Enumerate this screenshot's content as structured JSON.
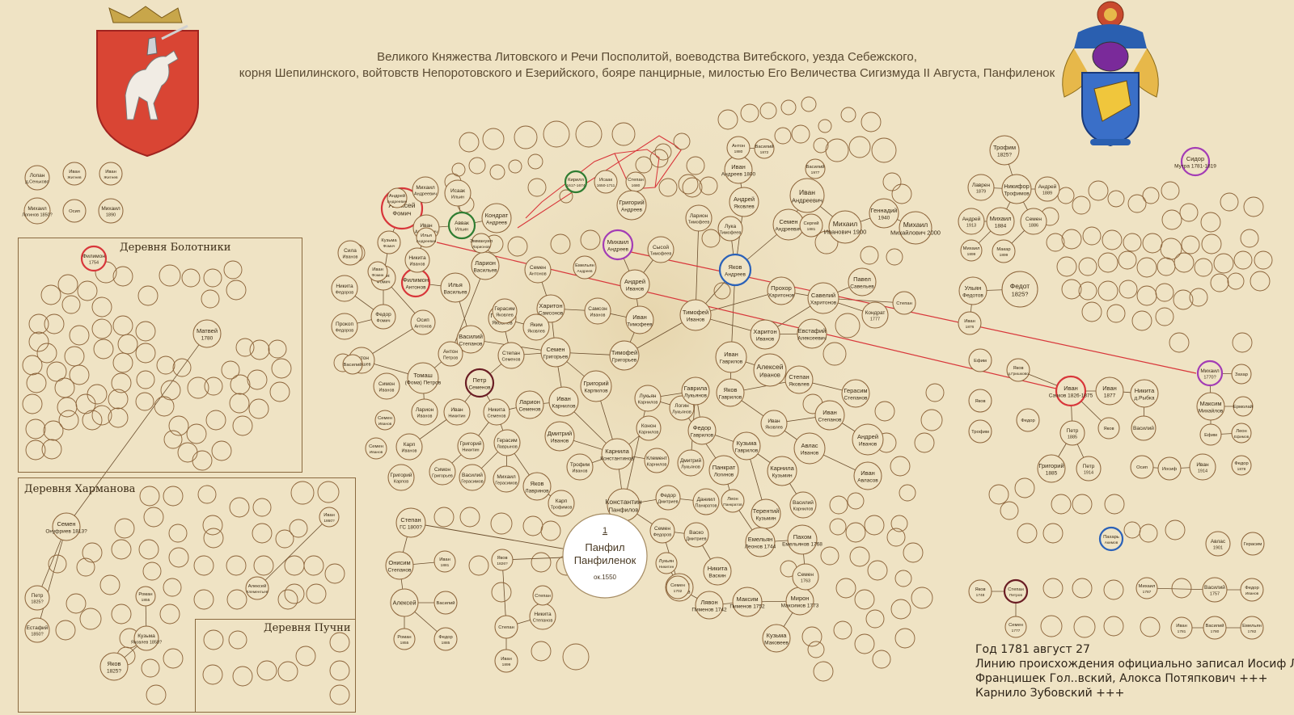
{
  "header": {
    "line1": "Великого Княжества Литовского и Речи Посполитой, воеводства Витебского, уезда Себежского,",
    "line2": "корня Шепилинского, войтовств Непоротовского и Езерийского, бояре панцирные, милостью Его Величества Сигизмуда II Августа, Панфиленок"
  },
  "regions": {
    "bolotniki": "Деревня Болотники",
    "kharmanova": "Деревня Харманова",
    "puchni": "Деревня Пучни"
  },
  "root": {
    "num": "1",
    "name1": "Панфил",
    "name2": "Панфиленок",
    "year": "ок.1550"
  },
  "people": [
    {
      "id": "p1",
      "name": "Лопан",
      "sub": "д.Сеньково"
    },
    {
      "id": "p2",
      "name": "Иван",
      "sub": "Житнев"
    },
    {
      "id": "p3",
      "name": "Иван",
      "sub": "Житнев"
    },
    {
      "id": "p4",
      "name": "Михаил",
      "sub": "Логинов 1850?"
    },
    {
      "id": "p5",
      "name": "Осип",
      "sub": ""
    },
    {
      "id": "p6",
      "name": "Михаил",
      "sub": "1890"
    },
    {
      "id": "b1",
      "name": "Филимон",
      "sub": "1754"
    },
    {
      "id": "b2",
      "name": "Матвей",
      "sub": "1780"
    },
    {
      "id": "h1",
      "name": "Семен",
      "sub": "Онуфриев 1813?"
    },
    {
      "id": "h2",
      "name": "Петр",
      "sub": "1825?"
    },
    {
      "id": "h3",
      "name": "Естафий",
      "sub": "1850?"
    },
    {
      "id": "h4",
      "name": "Кузьма",
      "sub": "Яковлев 1858?"
    },
    {
      "id": "h5",
      "name": "Яков",
      "sub": "1825?"
    },
    {
      "id": "h6",
      "name": "Роман",
      "sub": "1855"
    },
    {
      "id": "h7",
      "name": "Алексей",
      "sub": "Клементьев"
    },
    {
      "id": "h8",
      "name": "Иван",
      "sub": "1860?"
    },
    {
      "id": "m1",
      "name": "Алексей",
      "sub": "Фомич"
    },
    {
      "id": "m2",
      "name": "Кузьма",
      "sub": "Фомич"
    },
    {
      "id": "m3",
      "name": "Иван",
      "sub": "Фомич"
    },
    {
      "id": "m4",
      "name": "Филимон",
      "sub": "Антонов"
    },
    {
      "id": "m5",
      "name": "Илья",
      "sub": "Васильев"
    },
    {
      "id": "m6",
      "name": "Никита",
      "sub": "Федоров"
    },
    {
      "id": "m7",
      "name": "Прокоп",
      "sub": "Федоров"
    },
    {
      "id": "m8",
      "name": "Федор",
      "sub": "Фомич"
    },
    {
      "id": "m9",
      "name": "Осип",
      "sub": "Антонов"
    },
    {
      "id": "m10",
      "name": "Антон",
      "sub": "Томашев"
    },
    {
      "id": "m11",
      "name": "Томаш",
      "sub": "(Фома) Петров"
    },
    {
      "id": "m12",
      "name": "Петр",
      "sub": "Семенов"
    },
    {
      "id": "m13",
      "name": "Симон",
      "sub": "Иванов"
    },
    {
      "id": "m14",
      "name": "Ларион",
      "sub": "Иванов"
    },
    {
      "id": "m15",
      "name": "Иван",
      "sub": "Никитин"
    },
    {
      "id": "m16",
      "name": "Никита",
      "sub": "Семенов"
    },
    {
      "id": "m17",
      "name": "Карп",
      "sub": "Иванов"
    },
    {
      "id": "m18",
      "name": "Григорий",
      "sub": "Никитин"
    },
    {
      "id": "m19",
      "name": "Симон",
      "sub": "Григорьев"
    },
    {
      "id": "m20",
      "name": "Герасим",
      "sub": "Лаврынов"
    },
    {
      "id": "m21",
      "name": "Василий",
      "sub": "Герасимов"
    },
    {
      "id": "m22",
      "name": "Михаил",
      "sub": "Герасимов"
    },
    {
      "id": "m23",
      "name": "Яков",
      "sub": "Лавринов"
    },
    {
      "id": "m24",
      "name": "Карп",
      "sub": "Трофимов"
    },
    {
      "id": "m25",
      "name": "Степан",
      "sub": "ГС 1800?"
    },
    {
      "id": "m26",
      "name": "Онисим",
      "sub": "Степанов"
    },
    {
      "id": "m27",
      "name": "Иван",
      "sub": "1881"
    },
    {
      "id": "m28",
      "name": "Алексей",
      "sub": ""
    },
    {
      "id": "m29",
      "name": "Василий",
      "sub": ""
    },
    {
      "id": "m30",
      "name": "Роман",
      "sub": "1855"
    },
    {
      "id": "m31",
      "name": "Федор",
      "sub": "1885"
    },
    {
      "id": "m32",
      "name": "Яков",
      "sub": "1826?"
    },
    {
      "id": "m33",
      "name": "Степан",
      "sub": ""
    },
    {
      "id": "m34",
      "name": "Никита",
      "sub": "Степанов"
    },
    {
      "id": "m35",
      "name": "Степан",
      "sub": ""
    },
    {
      "id": "m36",
      "name": "Иван",
      "sub": "1899"
    },
    {
      "id": "c1",
      "name": "Семен",
      "sub": "Григорьев"
    },
    {
      "id": "c2",
      "name": "Харитон",
      "sub": "Самсонов"
    },
    {
      "id": "c3",
      "name": "Самсон",
      "sub": "Иванов"
    },
    {
      "id": "c4",
      "name": "Иван",
      "sub": "Тимофеев"
    },
    {
      "id": "c5",
      "name": "Тимофей",
      "sub": "Иванов"
    },
    {
      "id": "c6",
      "name": "Андрей",
      "sub": "Иванов"
    },
    {
      "id": "c7",
      "name": "Михаил",
      "sub": "Андреев"
    },
    {
      "id": "c8",
      "name": "Сысой",
      "sub": "Тимофеев"
    },
    {
      "id": "c9",
      "name": "Герасим",
      "sub": "Яковлев"
    },
    {
      "id": "c10",
      "name": "Яким",
      "sub": "Яковлев"
    },
    {
      "id": "c11",
      "name": "Степан",
      "sub": "Семенов"
    },
    {
      "id": "c12",
      "name": "Василий",
      "sub": "Степанов"
    },
    {
      "id": "c13",
      "name": "Антон",
      "sub": "Петров"
    },
    {
      "id": "c14",
      "name": "Тимофей",
      "sub": "Григорьев"
    },
    {
      "id": "c15",
      "name": "Григорий",
      "sub": "Карпилов"
    },
    {
      "id": "c16",
      "name": "Иван",
      "sub": "Карнилов"
    },
    {
      "id": "c17",
      "name": "Ларион",
      "sub": "Семенов"
    },
    {
      "id": "c18",
      "name": "Дмитрий",
      "sub": "Иванов"
    },
    {
      "id": "c19",
      "name": "Трофим",
      "sub": "Иванов"
    },
    {
      "id": "c20",
      "name": "Карнила",
      "sub": "Константинов"
    },
    {
      "id": "c21",
      "name": "Константин",
      "sub": "Панфилов"
    },
    {
      "id": "c22",
      "name": "Лукьян",
      "sub": "Карнилов"
    },
    {
      "id": "c23",
      "name": "Логин",
      "sub": "Лукьянов"
    },
    {
      "id": "c24",
      "name": "Конон",
      "sub": "Карнилов"
    },
    {
      "id": "c25",
      "name": "Клемент",
      "sub": "Карнилов"
    },
    {
      "id": "c26",
      "name": "Гаврила",
      "sub": "Лукьянов"
    },
    {
      "id": "c27",
      "name": "Дмитрий",
      "sub": "Лукьянов"
    },
    {
      "id": "c28",
      "name": "Федор",
      "sub": "Гаврилов"
    },
    {
      "id": "c29",
      "name": "Панкрат",
      "sub": "Логинов"
    },
    {
      "id": "c30",
      "name": "Федор",
      "sub": "Дмитриев"
    },
    {
      "id": "c31",
      "name": "Даниил",
      "sub": "Панкратов"
    },
    {
      "id": "c32",
      "name": "Леон",
      "sub": "Панкратов"
    },
    {
      "id": "c33",
      "name": "Семен",
      "sub": "Федоров"
    },
    {
      "id": "c34",
      "name": "Васко",
      "sub": "Дмитриев"
    },
    {
      "id": "c35",
      "name": "Никита",
      "sub": "Васкин"
    },
    {
      "id": "c36",
      "name": "Лаврен",
      "sub": "Семенов"
    },
    {
      "id": "c37",
      "name": "Лукьян",
      "sub": "Никитин"
    },
    {
      "id": "c38",
      "name": "Семен",
      "sub": "1702"
    },
    {
      "id": "c39",
      "name": "Лявон",
      "sub": "Пименов 1742"
    },
    {
      "id": "c40",
      "name": "Максим",
      "sub": "Пименов 1752"
    },
    {
      "id": "c41",
      "name": "Мирон",
      "sub": "Максимов 1773"
    },
    {
      "id": "c42",
      "name": "Кузьма",
      "sub": "Маковеев"
    },
    {
      "id": "r1",
      "name": "Андрей",
      "sub": "Яковлев"
    },
    {
      "id": "r2",
      "name": "Лука",
      "sub": "Тимофеев"
    },
    {
      "id": "r3",
      "name": "Ларион",
      "sub": "Тимофеев"
    },
    {
      "id": "r4",
      "name": "Иван",
      "sub": "Андреев 1800"
    },
    {
      "id": "r5",
      "name": "Яков",
      "sub": "Андреев"
    },
    {
      "id": "r6",
      "name": "Семен",
      "sub": "Андреевич"
    },
    {
      "id": "r7",
      "name": "Иван",
      "sub": "Андреевич"
    },
    {
      "id": "r8",
      "name": "Прохор",
      "sub": "Харитонов"
    },
    {
      "id": "r9",
      "name": "Харитон",
      "sub": "Иванов"
    },
    {
      "id": "r10",
      "name": "Савелий",
      "sub": "Харитонов"
    },
    {
      "id": "r11",
      "name": "Евстафий",
      "sub": "Алексеевич"
    },
    {
      "id": "r12",
      "name": "Алексей",
      "sub": "Иванов"
    },
    {
      "id": "r13",
      "name": "Иван",
      "sub": "Гаврилов"
    },
    {
      "id": "r14",
      "name": "Степан",
      "sub": "Яковлев"
    },
    {
      "id": "r15",
      "name": "Герасим",
      "sub": "Степанов"
    },
    {
      "id": "r16",
      "name": "Иван",
      "sub": "Яковлев"
    },
    {
      "id": "r17",
      "name": "Иван",
      "sub": "Степанов"
    },
    {
      "id": "r18",
      "name": "Андрей",
      "sub": "Иванов"
    },
    {
      "id": "r19",
      "name": "Авлас",
      "sub": "Иванов"
    },
    {
      "id": "r20",
      "name": "Иван",
      "sub": "Авласов"
    },
    {
      "id": "r21",
      "name": "Карнила",
      "sub": "Кузьмин"
    },
    {
      "id": "r22",
      "name": "Кузьма",
      "sub": "Гаврилов"
    },
    {
      "id": "r23",
      "name": "Терентий",
      "sub": "Кузьмин"
    },
    {
      "id": "r24",
      "name": "Василий",
      "sub": "Карнилов"
    },
    {
      "id": "r25",
      "name": "Емельян",
      "sub": "Леонов 1744"
    },
    {
      "id": "r26",
      "name": "Пахом",
      "sub": "Емельянов 1768"
    },
    {
      "id": "r27",
      "name": "Семен",
      "sub": "1763"
    },
    {
      "id": "r28",
      "name": "Павел",
      "sub": "Савельев"
    },
    {
      "id": "r29",
      "name": "Кондрат",
      "sub": "1777"
    },
    {
      "id": "r30",
      "name": "Степан",
      "sub": ""
    },
    {
      "id": "r31",
      "name": "Яков",
      "sub": "Гаврилов"
    },
    {
      "id": "r32",
      "name": "Михаил",
      "sub": "Иванович 1900"
    },
    {
      "id": "r33",
      "name": "Сергей",
      "sub": "1881"
    },
    {
      "id": "r34",
      "name": "Василий",
      "sub": "1977"
    },
    {
      "id": "r35",
      "name": "Геннадий",
      "sub": "1940"
    },
    {
      "id": "r36",
      "name": "Михаил",
      "sub": "Михайлович 2000"
    },
    {
      "id": "r37",
      "name": "Антон",
      "sub": "1880"
    },
    {
      "id": "r38",
      "name": "Василий",
      "sub": "1872"
    },
    {
      "id": "e1",
      "name": "Трофим",
      "sub": "1825?"
    },
    {
      "id": "e2",
      "name": "Лаврен",
      "sub": "1879"
    },
    {
      "id": "e3",
      "name": "Никифор",
      "sub": "Трофимов"
    },
    {
      "id": "e4",
      "name": "Андрей",
      "sub": "1889"
    },
    {
      "id": "e5",
      "name": "Михаил",
      "sub": "1884"
    },
    {
      "id": "e6",
      "name": "Семен",
      "sub": "1886"
    },
    {
      "id": "e7",
      "name": "Андрей",
      "sub": "1913"
    },
    {
      "id": "e8",
      "name": "Михаил",
      "sub": "1899"
    },
    {
      "id": "e9",
      "name": "Макар",
      "sub": "1899"
    },
    {
      "id": "e10",
      "name": "Ульян",
      "sub": "Федотов"
    },
    {
      "id": "e11",
      "name": "Федот",
      "sub": "1825?"
    },
    {
      "id": "e12",
      "name": "Иван",
      "sub": "1876"
    },
    {
      "id": "e13",
      "name": "Ефим",
      "sub": ""
    },
    {
      "id": "e14",
      "name": "Яков",
      "sub": ""
    },
    {
      "id": "e15",
      "name": "Трофим",
      "sub": ""
    },
    {
      "id": "e16",
      "name": "Яков",
      "sub": "д.Гришково"
    },
    {
      "id": "e17",
      "name": "Федор",
      "sub": ""
    },
    {
      "id": "e18",
      "name": "Иван",
      "sub": "Сачков 1826-1875"
    },
    {
      "id": "e19",
      "name": "Иван",
      "sub": "1877"
    },
    {
      "id": "e20",
      "name": "Никита",
      "sub": "д.Рыбка"
    },
    {
      "id": "e21",
      "name": "Петр",
      "sub": "1885"
    },
    {
      "id": "e22",
      "name": "Яков",
      "sub": ""
    },
    {
      "id": "e23",
      "name": "Василий",
      "sub": ""
    },
    {
      "id": "e24",
      "name": "Григорий",
      "sub": "1885"
    },
    {
      "id": "e25",
      "name": "Петр",
      "sub": "1914"
    },
    {
      "id": "e26",
      "name": "Осип",
      "sub": ""
    },
    {
      "id": "e27",
      "name": "Иосиф",
      "sub": ""
    },
    {
      "id": "e28",
      "name": "Иван",
      "sub": "1914"
    },
    {
      "id": "e29",
      "name": "Сидор",
      "sub": "Мутра 1781-1819"
    },
    {
      "id": "e30",
      "name": "Михаил",
      "sub": "1770?"
    },
    {
      "id": "e31",
      "name": "Максим",
      "sub": "Михайлов"
    },
    {
      "id": "e32",
      "name": "Ефим",
      "sub": ""
    },
    {
      "id": "e33",
      "name": "Леон",
      "sub": "Ефимов"
    },
    {
      "id": "e34",
      "name": "Ермолай",
      "sub": ""
    },
    {
      "id": "e35",
      "name": "Захар",
      "sub": ""
    },
    {
      "id": "e36",
      "name": "Федор",
      "sub": "1878"
    },
    {
      "id": "e37",
      "name": "Пахарь",
      "sub": "Акимов"
    },
    {
      "id": "e38",
      "name": "Авлас",
      "sub": "1901"
    },
    {
      "id": "e39",
      "name": "Герасим",
      "sub": ""
    },
    {
      "id": "e40",
      "name": "Степан",
      "sub": "Петров"
    },
    {
      "id": "e41",
      "name": "Яков",
      "sub": "1748"
    },
    {
      "id": "e42",
      "name": "Семен",
      "sub": "1777"
    },
    {
      "id": "e43",
      "name": "Василий",
      "sub": "1757"
    },
    {
      "id": "e44",
      "name": "Федор",
      "sub": "Иванов"
    },
    {
      "id": "e45",
      "name": "Михаил",
      "sub": "1787"
    },
    {
      "id": "e46",
      "name": "Иван",
      "sub": "1781"
    },
    {
      "id": "e47",
      "name": "Василий",
      "sub": "1780"
    },
    {
      "id": "e48",
      "name": "Емельян",
      "sub": "1782"
    },
    {
      "id": "e49",
      "name": "Кирилл",
      "sub": "1617-1674"
    },
    {
      "id": "e50",
      "name": "Исаак",
      "sub": "1650-1711"
    },
    {
      "id": "e51",
      "name": "Степан",
      "sub": "1680"
    },
    {
      "id": "e52",
      "name": "Григорий",
      "sub": "Андреев"
    },
    {
      "id": "e53",
      "name": "Аввак",
      "sub": "Ильин"
    },
    {
      "id": "e54",
      "name": "Кондрат",
      "sub": "Андреев"
    },
    {
      "id": "e55",
      "name": "Исаак",
      "sub": "Ильин"
    },
    {
      "id": "e56",
      "name": "Михаил",
      "sub": "Андреевич"
    },
    {
      "id": "e57",
      "name": "Андрей",
      "sub": "Андреевич"
    },
    {
      "id": "e58",
      "name": "Иван",
      "sub": "Андреевич"
    },
    {
      "id": "e59",
      "name": "Илья",
      "sub": "Андреевич"
    },
    {
      "id": "e60",
      "name": "Ларион",
      "sub": "Васильев"
    },
    {
      "id": "e61",
      "name": "Эммануил",
      "sub": "Ларионов"
    },
    {
      "id": "e62",
      "name": "Семен",
      "sub": "Антонов"
    },
    {
      "id": "e63",
      "name": "Емельян",
      "sub": "Андреев"
    },
    {
      "id": "e64",
      "name": "Герасим",
      "sub": "Яковлев"
    },
    {
      "id": "e65",
      "name": "Никита",
      "sub": "Иванов"
    },
    {
      "id": "e66",
      "name": "Сила",
      "sub": "Иванов"
    },
    {
      "id": "e67",
      "name": "Иван",
      "sub": "Фомин"
    },
    {
      "id": "e68",
      "name": "Семен",
      "sub": "Иванов"
    },
    {
      "id": "e69",
      "name": "Григорий",
      "sub": "Карпов"
    },
    {
      "id": "e70",
      "name": "Василий",
      "sub": ""
    },
    {
      "id": "e71",
      "name": "Семен",
      "sub": "Иванов"
    }
  ],
  "footer": {
    "line1": "Год 1781 август 27",
    "line2": "Линию происхождения официально записал Иосиф Липайло",
    "line3": "Францишек Гол..вский, Алокса Потяпкович +++",
    "line4": "Карнило Зубовский +++"
  },
  "colors": {
    "background": "#efe3c4",
    "node_stroke": "#8b6238",
    "edge": "#6b4e2e",
    "highlight_red": "#d8363a",
    "highlight_green": "#2f7d32",
    "highlight_purple": "#a33cb5",
    "highlight_blue": "#2a61b8",
    "highlight_maroon": "#6a1d24"
  }
}
